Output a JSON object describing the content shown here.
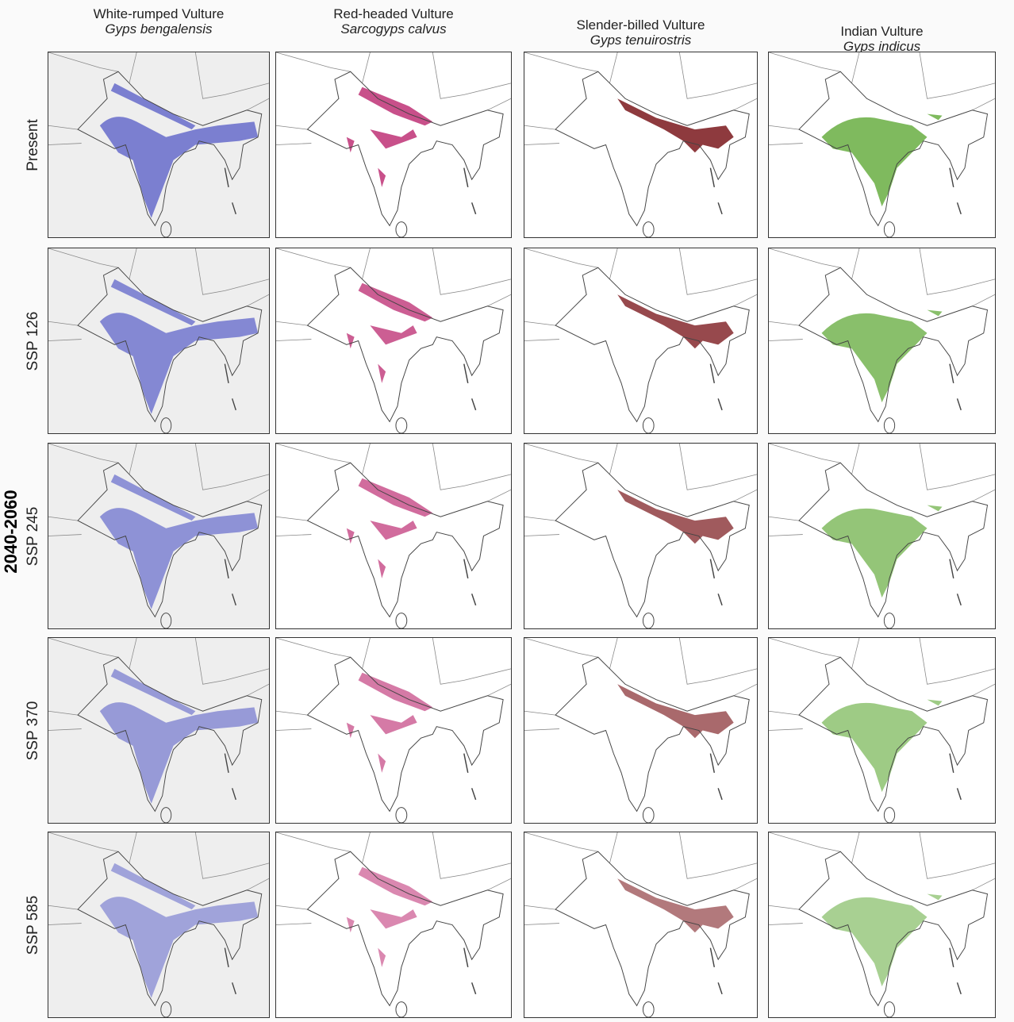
{
  "period_label": "2040-2060",
  "columns": [
    {
      "common_name": "White-rumped Vulture",
      "scientific_name": "Gyps bengalensis",
      "color": "#7b7fd0"
    },
    {
      "common_name": "Red-headed Vulture",
      "scientific_name": "Sarcogyps calvus",
      "color": "#c8508a"
    },
    {
      "common_name": "Slender-billed Vulture",
      "scientific_name": "Gyps tenuirostris",
      "color": "#8e3a3e"
    },
    {
      "common_name": "Indian Vulture",
      "scientific_name": "Gyps indicus",
      "color": "#7fba5e"
    }
  ],
  "rows": [
    {
      "label": "Present"
    },
    {
      "label": "SSP 126"
    },
    {
      "label": "SSP 245"
    },
    {
      "label": "SSP 370"
    },
    {
      "label": "SSP 585"
    }
  ]
}
